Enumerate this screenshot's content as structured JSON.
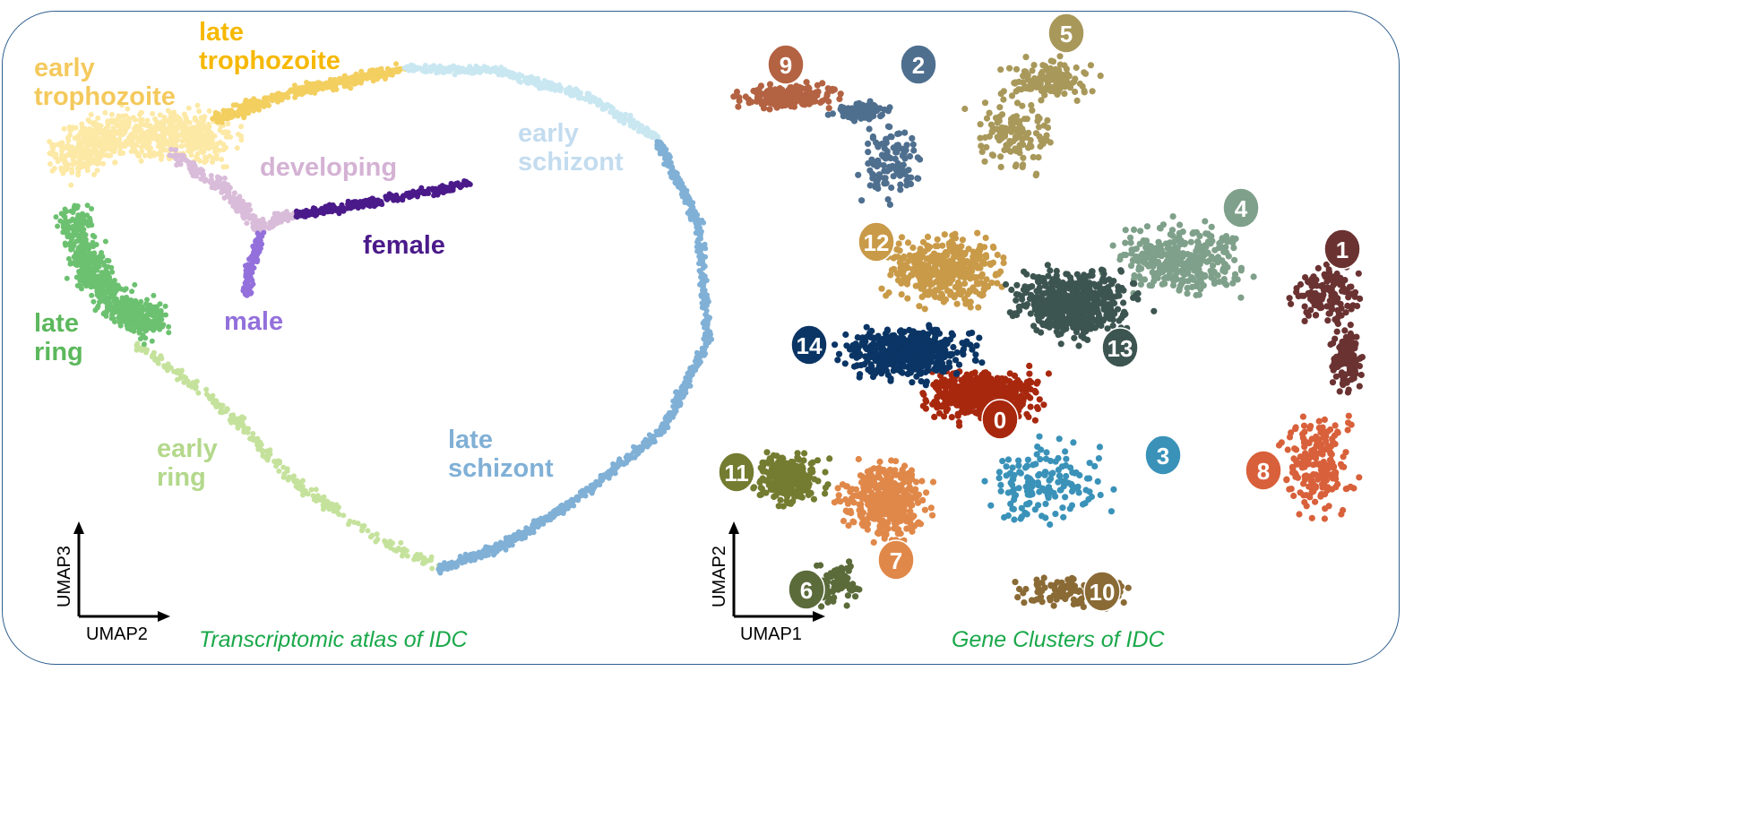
{
  "chart_data": [
    {
      "type": "scatter",
      "title": "Transcriptomic atlas of IDC",
      "xlabel": "UMAP2",
      "ylabel": "UMAP3",
      "grid": false,
      "series": [
        {
          "name": "early ring",
          "label": [
            "early",
            "ring"
          ],
          "color": "#c5e29c",
          "text_color": "#b3d88b"
        },
        {
          "name": "late ring",
          "label": [
            "late",
            "ring"
          ],
          "color": "#6cc170",
          "text_color": "#5cb85c"
        },
        {
          "name": "early trophozoite",
          "label": [
            "early",
            "trophozoite"
          ],
          "color": "#fde9a6",
          "text_color": "#f4c95c"
        },
        {
          "name": "late trophozoite",
          "label": [
            "late",
            "trophozoite"
          ],
          "color": "#f3cf60",
          "text_color": "#f6b800"
        },
        {
          "name": "early schizont",
          "label": [
            "early",
            "schizont"
          ],
          "color": "#c9e7f1",
          "text_color": "#c3dcef"
        },
        {
          "name": "late schizont",
          "label": [
            "late",
            "schizont"
          ],
          "color": "#80b0d6",
          "text_color": "#80b0d6"
        },
        {
          "name": "developing",
          "label": [
            "developing"
          ],
          "color": "#d9bcd9",
          "text_color": "#d4b2d4"
        },
        {
          "name": "female",
          "label": [
            "female"
          ],
          "color": "#4b1a8a",
          "text_color": "#4b1a8a"
        },
        {
          "name": "male",
          "label": [
            "male"
          ],
          "color": "#9370db",
          "text_color": "#9370db"
        }
      ]
    },
    {
      "type": "scatter",
      "title": "Gene Clusters of IDC",
      "xlabel": "UMAP1",
      "ylabel": "UMAP2",
      "grid": false,
      "series": [
        {
          "name": "0",
          "color": "#a8280e"
        },
        {
          "name": "1",
          "color": "#6b3232"
        },
        {
          "name": "2",
          "color": "#4f6f8f"
        },
        {
          "name": "3",
          "color": "#3a92b9"
        },
        {
          "name": "4",
          "color": "#7fa08a"
        },
        {
          "name": "5",
          "color": "#a8985a"
        },
        {
          "name": "6",
          "color": "#5b6b3a"
        },
        {
          "name": "7",
          "color": "#e0884a"
        },
        {
          "name": "8",
          "color": "#d8603a"
        },
        {
          "name": "9",
          "color": "#b36242"
        },
        {
          "name": "10",
          "color": "#8a6a35"
        },
        {
          "name": "11",
          "color": "#737c30"
        },
        {
          "name": "12",
          "color": "#c99a48"
        },
        {
          "name": "13",
          "color": "#3d5550"
        },
        {
          "name": "14",
          "color": "#0a3565"
        }
      ]
    }
  ]
}
